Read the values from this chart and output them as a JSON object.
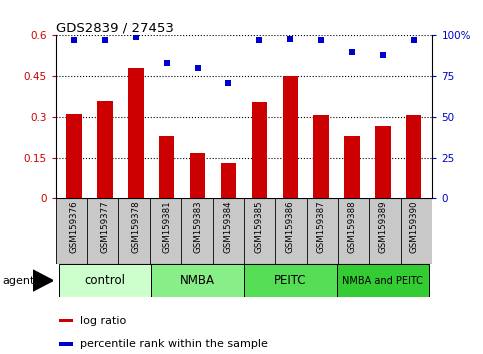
{
  "title": "GDS2839 / 27453",
  "categories": [
    "GSM159376",
    "GSM159377",
    "GSM159378",
    "GSM159381",
    "GSM159383",
    "GSM159384",
    "GSM159385",
    "GSM159386",
    "GSM159387",
    "GSM159388",
    "GSM159389",
    "GSM159390"
  ],
  "log_ratio": [
    0.31,
    0.36,
    0.48,
    0.23,
    0.165,
    0.13,
    0.355,
    0.45,
    0.305,
    0.23,
    0.265,
    0.305
  ],
  "percentile_rank": [
    97,
    97,
    99,
    83,
    80,
    71,
    97,
    98,
    97,
    90,
    88,
    97
  ],
  "bar_color": "#cc0000",
  "dot_color": "#0000cc",
  "ylim_left": [
    0,
    0.6
  ],
  "ylim_right": [
    0,
    100
  ],
  "yticks_left": [
    0,
    0.15,
    0.3,
    0.45,
    0.6
  ],
  "yticks_right": [
    0,
    25,
    50,
    75,
    100
  ],
  "ytick_labels_left": [
    "0",
    "0.15",
    "0.3",
    "0.45",
    "0.6"
  ],
  "ytick_labels_right": [
    "0",
    "25",
    "50",
    "75",
    "100%"
  ],
  "left_tick_color": "#cc0000",
  "right_tick_color": "#0000cc",
  "groups": [
    {
      "label": "control",
      "start": 0,
      "end": 3,
      "color": "#ccffcc"
    },
    {
      "label": "NMBA",
      "start": 3,
      "end": 6,
      "color": "#88ee88"
    },
    {
      "label": "PEITC",
      "start": 6,
      "end": 9,
      "color": "#55dd55"
    },
    {
      "label": "NMBA and PEITC",
      "start": 9,
      "end": 12,
      "color": "#33cc33"
    }
  ],
  "agent_label": "agent",
  "legend_bar_label": "log ratio",
  "legend_dot_label": "percentile rank within the sample",
  "bar_width": 0.5,
  "background_color": "#ffffff",
  "xlabel_area_color": "#c8c8c8"
}
